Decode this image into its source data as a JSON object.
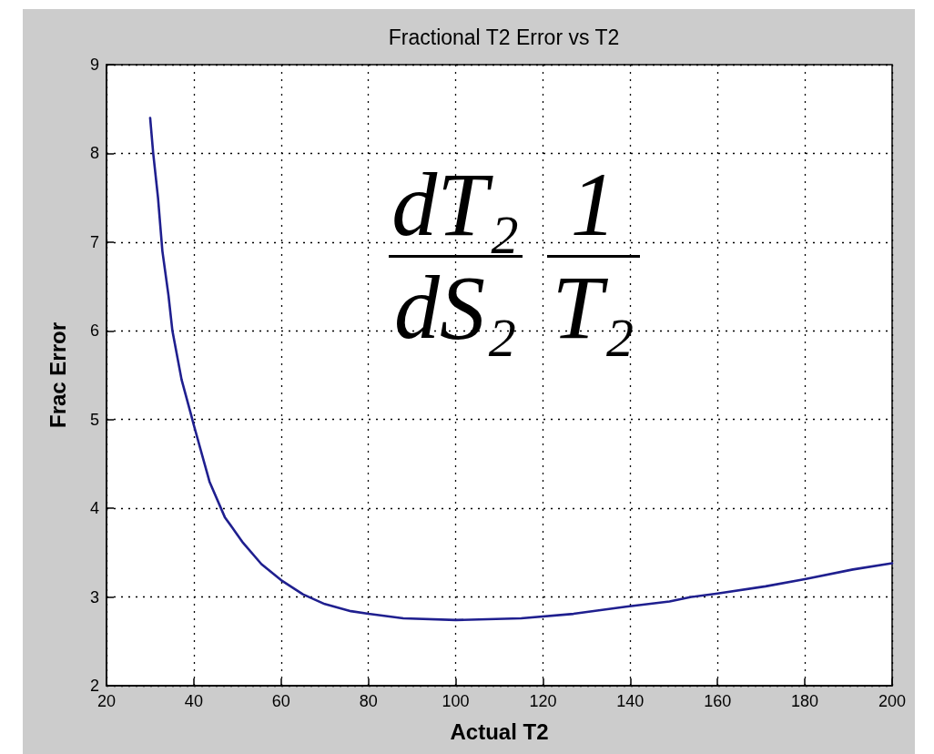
{
  "chart_data": {
    "type": "line",
    "title": "Fractional T2 Error vs T2",
    "xlabel": "Actual T2",
    "ylabel": "Frac Error",
    "annotations": [
      "dT₂\ndS₂",
      "1\nT₂"
    ],
    "x": [
      30,
      30.7,
      31.8,
      32.8,
      34.2,
      35.1,
      37.2,
      39.4,
      40.1,
      43.6,
      47.1,
      51.3,
      55.5,
      60,
      65,
      70,
      76,
      80,
      88,
      100,
      115,
      127,
      139,
      149,
      154,
      160,
      171,
      180,
      191,
      200
    ],
    "values": [
      8.4,
      8.0,
      7.5,
      6.9,
      6.4,
      6.0,
      5.45,
      5.05,
      4.92,
      4.3,
      3.9,
      3.61,
      3.37,
      3.19,
      3.03,
      2.92,
      2.84,
      2.81,
      2.76,
      2.74,
      2.76,
      2.81,
      2.89,
      2.95,
      3.0,
      3.04,
      3.12,
      3.2,
      3.31,
      3.38
    ],
    "color": "#1f1f8f",
    "xlim": [
      20,
      200
    ],
    "xticks": [
      20,
      40,
      60,
      80,
      100,
      120,
      140,
      160,
      180,
      200
    ],
    "ylim": [
      2,
      9
    ],
    "yticks": [
      2,
      3,
      4,
      5,
      6,
      7,
      8,
      9
    ],
    "grid": true,
    "marker": "none",
    "line_style": "solid"
  }
}
